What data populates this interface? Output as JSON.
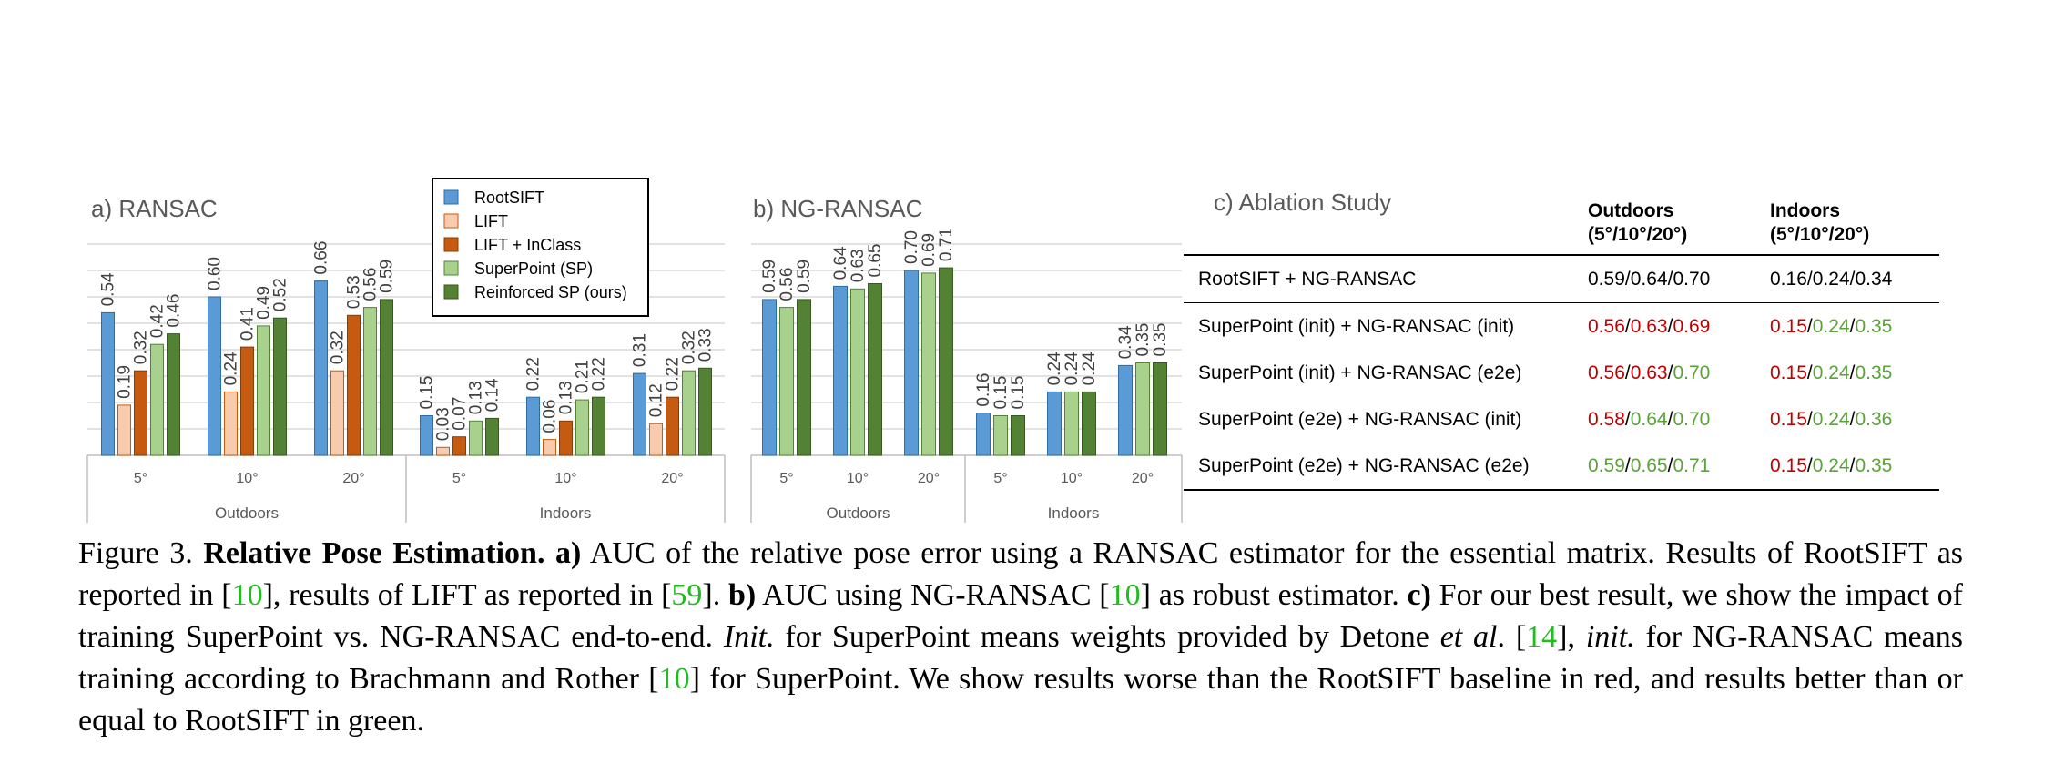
{
  "chart_data": [
    {
      "type": "bar",
      "title": "a) RANSAC",
      "series_names": [
        "RootSIFT",
        "LIFT",
        "LIFT + InClass",
        "SuperPoint (SP)",
        "Reinforced SP (ours)"
      ],
      "groups": [
        {
          "name": "Outdoors",
          "categories": [
            {
              "label": "5°",
              "values": [
                0.54,
                0.19,
                0.32,
                0.42,
                0.46
              ]
            },
            {
              "label": "10°",
              "values": [
                0.6,
                0.24,
                0.41,
                0.49,
                0.52
              ]
            },
            {
              "label": "20°",
              "values": [
                0.66,
                0.32,
                0.53,
                0.56,
                0.59
              ]
            }
          ]
        },
        {
          "name": "Indoors",
          "categories": [
            {
              "label": "5°",
              "values": [
                0.15,
                0.03,
                0.07,
                0.13,
                0.14
              ]
            },
            {
              "label": "10°",
              "values": [
                0.22,
                0.06,
                0.13,
                0.21,
                0.22
              ]
            },
            {
              "label": "20°",
              "values": [
                0.31,
                0.12,
                0.22,
                0.32,
                0.33
              ]
            }
          ]
        }
      ],
      "ylim": [
        0,
        0.8
      ]
    },
    {
      "type": "bar",
      "title": "b) NG-RANSAC",
      "series_names": [
        "RootSIFT",
        "SuperPoint (SP)",
        "Reinforced SP (ours)"
      ],
      "groups": [
        {
          "name": "Outdoors",
          "categories": [
            {
              "label": "5°",
              "values": [
                0.59,
                0.56,
                0.59
              ]
            },
            {
              "label": "10°",
              "values": [
                0.64,
                0.63,
                0.65
              ]
            },
            {
              "label": "20°",
              "values": [
                0.7,
                0.69,
                0.71
              ]
            }
          ]
        },
        {
          "name": "Indoors",
          "categories": [
            {
              "label": "5°",
              "values": [
                0.16,
                0.15,
                0.15
              ]
            },
            {
              "label": "10°",
              "values": [
                0.24,
                0.24,
                0.24
              ]
            },
            {
              "label": "20°",
              "values": [
                0.34,
                0.35,
                0.35
              ]
            }
          ]
        }
      ],
      "ylim": [
        0,
        0.8
      ]
    }
  ],
  "legend": [
    {
      "label": "RootSIFT",
      "color": "#5b9bd5"
    },
    {
      "label": "LIFT",
      "color": "#f8cbad"
    },
    {
      "label": "LIFT + InClass",
      "color": "#c55a11"
    },
    {
      "label": "SuperPoint (SP)",
      "color": "#a9d18e"
    },
    {
      "label": "Reinforced SP (ours)",
      "color": "#548235"
    }
  ],
  "colors": {
    "red": "#c00000",
    "green": "#5ba23a",
    "ref_green": "#22bb22"
  },
  "ablation": {
    "title": "c) Ablation Study",
    "col_outdoors": "Outdoors",
    "col_indoors": "Indoors",
    "col_thresholds": "(5°/10°/20°)",
    "rows": [
      {
        "method": "RootSIFT + NG-RANSAC",
        "outdoors": [
          {
            "v": "0.59",
            "c": ""
          },
          {
            "v": "0.64",
            "c": ""
          },
          {
            "v": "0.70",
            "c": ""
          }
        ],
        "indoors": [
          {
            "v": "0.16",
            "c": ""
          },
          {
            "v": "0.24",
            "c": ""
          },
          {
            "v": "0.34",
            "c": ""
          }
        ]
      },
      {
        "method": "SuperPoint (init) + NG-RANSAC (init)",
        "outdoors": [
          {
            "v": "0.56",
            "c": "red"
          },
          {
            "v": "0.63",
            "c": "red"
          },
          {
            "v": "0.69",
            "c": "red"
          }
        ],
        "indoors": [
          {
            "v": "0.15",
            "c": "red"
          },
          {
            "v": "0.24",
            "c": "green"
          },
          {
            "v": "0.35",
            "c": "green"
          }
        ]
      },
      {
        "method": "SuperPoint (init) + NG-RANSAC (e2e)",
        "outdoors": [
          {
            "v": "0.56",
            "c": "red"
          },
          {
            "v": "0.63",
            "c": "red"
          },
          {
            "v": "0.70",
            "c": "green"
          }
        ],
        "indoors": [
          {
            "v": "0.15",
            "c": "red"
          },
          {
            "v": "0.24",
            "c": "green"
          },
          {
            "v": "0.35",
            "c": "green"
          }
        ]
      },
      {
        "method": "SuperPoint (e2e) + NG-RANSAC (init)",
        "outdoors": [
          {
            "v": "0.58",
            "c": "red"
          },
          {
            "v": "0.64",
            "c": "green"
          },
          {
            "v": "0.70",
            "c": "green"
          }
        ],
        "indoors": [
          {
            "v": "0.15",
            "c": "red"
          },
          {
            "v": "0.24",
            "c": "green"
          },
          {
            "v": "0.36",
            "c": "green"
          }
        ]
      },
      {
        "method": "SuperPoint (e2e) + NG-RANSAC (e2e)",
        "outdoors": [
          {
            "v": "0.59",
            "c": "green"
          },
          {
            "v": "0.65",
            "c": "green"
          },
          {
            "v": "0.71",
            "c": "green"
          }
        ],
        "indoors": [
          {
            "v": "0.15",
            "c": "red"
          },
          {
            "v": "0.24",
            "c": "green"
          },
          {
            "v": "0.35",
            "c": "green"
          }
        ]
      }
    ]
  },
  "caption": {
    "s1": "Figure 3. ",
    "b1": "Relative Pose Estimation.",
    "s2": " ",
    "b2": "a)",
    "s3": " AUC of the relative pose error using a RANSAC estimator for the essential matrix. Results of RootSIFT as reported in [",
    "r1": "10",
    "s4": "], results of LIFT as reported in [",
    "r2": "59",
    "s5": "]. ",
    "b3": "b)",
    "s6": " AUC using NG-RANSAC [",
    "r3": "10",
    "s7": "] as robust estimator. ",
    "b4": "c)",
    "s8": " For our best result, we show the impact of training SuperPoint vs. NG-RANSAC end-to-end. ",
    "i1": "Init.",
    "s9": " for SuperPoint means weights provided by Detone ",
    "i2": "et al",
    "s10": ". [",
    "r4": "14",
    "s11": "], ",
    "i3": "init.",
    "s12": " for NG-RANSAC means training according to Brachmann and Rother [",
    "r5": "10",
    "s13": "] for SuperPoint. We show results worse than the RootSIFT baseline in red, and results better than or equal to RootSIFT in green."
  }
}
